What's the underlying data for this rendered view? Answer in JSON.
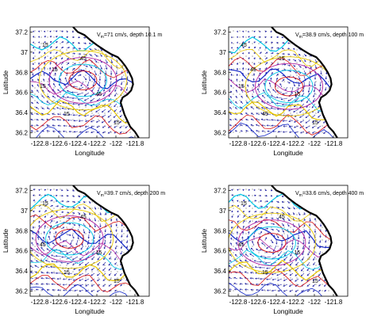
{
  "chart_data": [
    {
      "type": "contour",
      "annotation": "V<sub>m</sub>=71 cm/s, depth 10.1 m",
      "annotation_parts": [
        "V",
        "m",
        "=71 cm/s, depth 10.1 m"
      ],
      "xlabel": "Longitude",
      "ylabel": "Latitude",
      "xlim": [
        -122.9,
        -121.65
      ],
      "ylim": [
        36.15,
        37.25
      ],
      "xticks": [
        -122.8,
        -122.6,
        -122.4,
        -122.2,
        -122,
        -121.8
      ],
      "xtick_labels": [
        "-122.8",
        "-122.6",
        "-122.4",
        "-122.2",
        "-122",
        "-121.8"
      ],
      "yticks": [
        36.2,
        36.4,
        36.6,
        36.8,
        37,
        37.2
      ],
      "ytick_labels": [
        "36.2",
        "36.4",
        "36.6",
        "36.8",
        "37",
        "37.2"
      ],
      "contour_labels": [
        "15",
        "45",
        "15",
        "15",
        "45",
        "15",
        "15",
        "45"
      ]
    },
    {
      "type": "contour",
      "annotation_parts": [
        "V",
        "m",
        "=38.9 cm/s, depth 100 m"
      ],
      "xlabel": "Longitude",
      "ylabel": "Latitude",
      "xlim": [
        -122.9,
        -121.65
      ],
      "ylim": [
        36.15,
        37.25
      ],
      "xticks": [
        -122.8,
        -122.6,
        -122.4,
        -122.2,
        -122,
        -121.8
      ],
      "xtick_labels": [
        "-122.8",
        "-122.6",
        "-122.4",
        "-122.2",
        "-122",
        "-121.8"
      ],
      "yticks": [
        36.2,
        36.4,
        36.6,
        36.8,
        37,
        37.2
      ],
      "ytick_labels": [
        "36.2",
        "36.4",
        "36.6",
        "36.8",
        "37",
        "37.2"
      ],
      "contour_labels": [
        "45",
        "15",
        "15",
        "45",
        "15",
        "15",
        "45"
      ]
    },
    {
      "type": "contour",
      "annotation_parts": [
        "V",
        "m",
        "=39.7 cm/s, depth 200 m"
      ],
      "xlabel": "Longitude",
      "ylabel": "Latitude",
      "xlim": [
        -122.9,
        -121.65
      ],
      "ylim": [
        36.15,
        37.25
      ],
      "xticks": [
        -122.8,
        -122.6,
        -122.4,
        -122.2,
        -122,
        -121.8
      ],
      "xtick_labels": [
        "-122.8",
        "-122.6",
        "-122.4",
        "-122.2",
        "-122",
        "-121.8"
      ],
      "yticks": [
        36.2,
        36.4,
        36.6,
        36.8,
        37,
        37.2
      ],
      "ytick_labels": [
        "36.2",
        "36.4",
        "36.6",
        "36.8",
        "37",
        "37.2"
      ],
      "contour_labels": [
        "15",
        "45",
        "45",
        "15",
        "15",
        "15"
      ]
    },
    {
      "type": "contour",
      "annotation_parts": [
        "V",
        "m",
        "=33.6 cm/s, depth 400 m"
      ],
      "xlabel": "Longitude",
      "ylabel": "Latitude",
      "xlim": [
        -122.9,
        -121.65
      ],
      "ylim": [
        36.15,
        37.25
      ],
      "xticks": [
        -122.8,
        -122.6,
        -122.4,
        -122.2,
        -122,
        -121.8
      ],
      "xtick_labels": [
        "-122.8",
        "-122.6",
        "-122.4",
        "-122.2",
        "-122",
        "-121.8"
      ],
      "yticks": [
        36.2,
        36.4,
        36.6,
        36.8,
        37,
        37.2
      ],
      "ytick_labels": [
        "36.2",
        "36.4",
        "36.6",
        "36.8",
        "37",
        "37.2"
      ],
      "contour_labels": [
        "15",
        "45",
        "45",
        "15",
        "15",
        "15"
      ]
    }
  ],
  "colors": {
    "coast": "#000000",
    "arrows": "#1a1aa0",
    "contour_cyan": "#00c8e6",
    "contour_yellow": "#e8c800",
    "contour_red": "#d81010",
    "contour_blue": "#1428c8",
    "contour_magenta": "#b020a0",
    "grid_dots": "#777777"
  }
}
